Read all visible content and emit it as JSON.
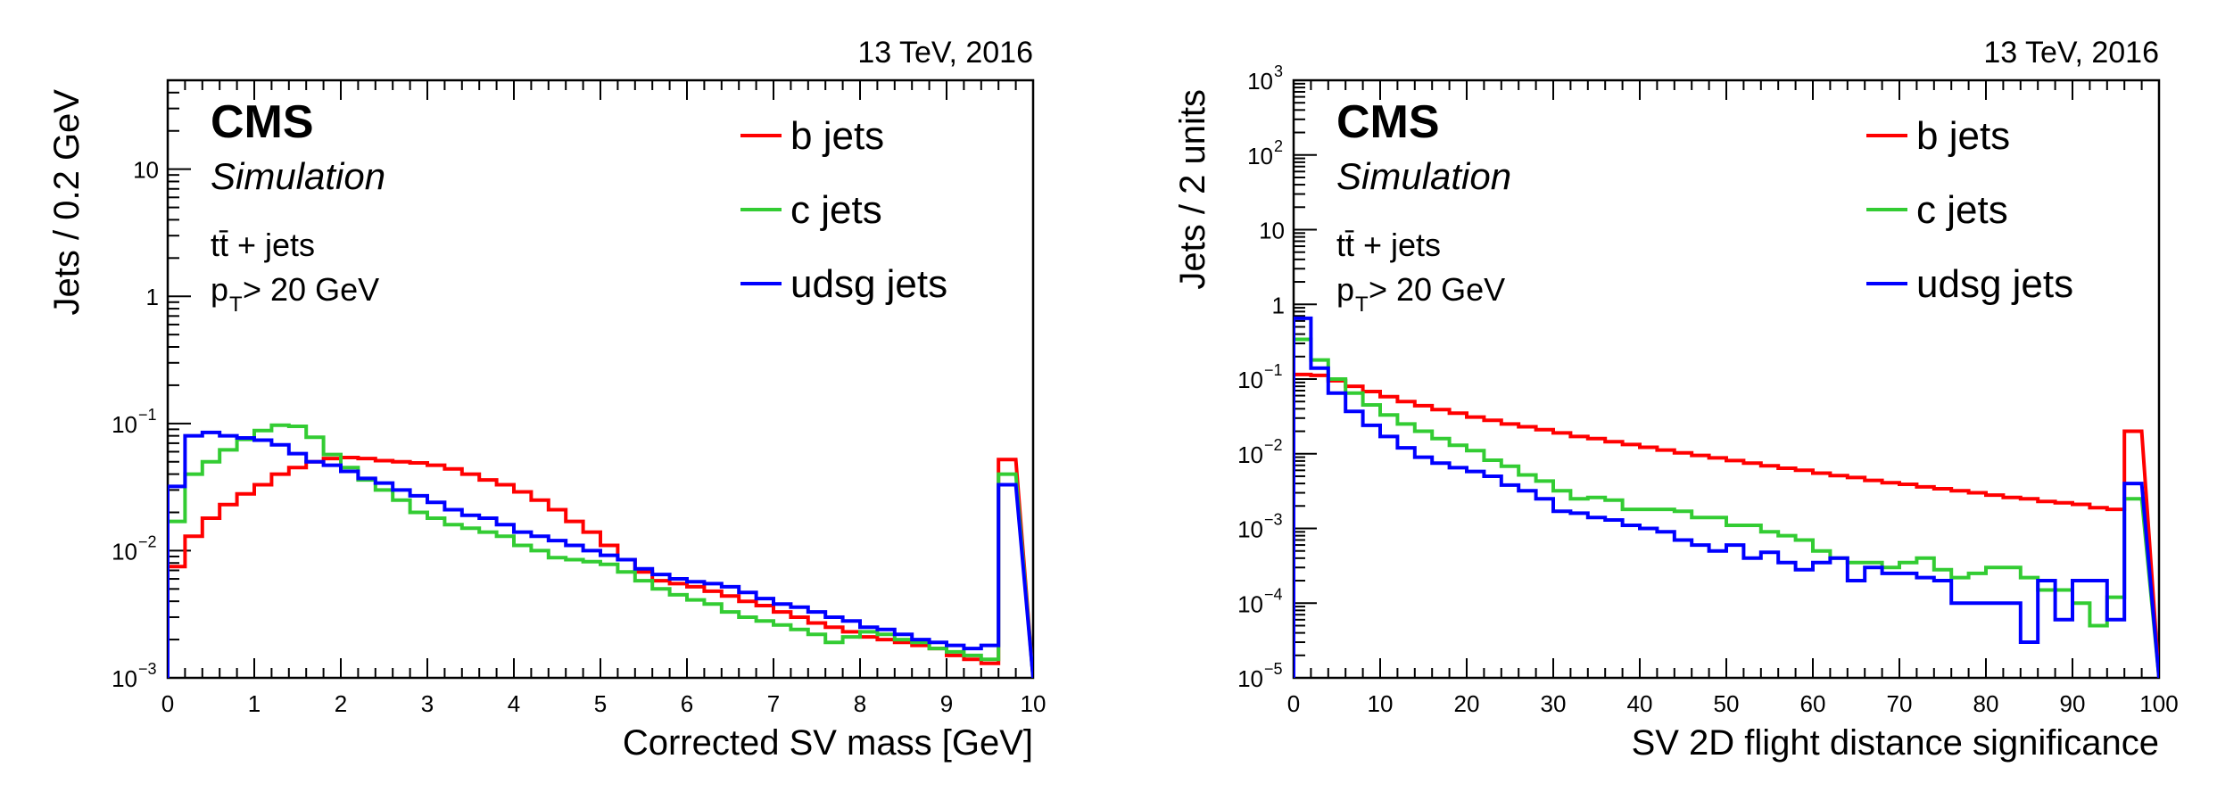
{
  "chart_data": [
    {
      "type": "line",
      "step": true,
      "experiment": "CMS",
      "subtitle": "Simulation",
      "energy_label": "13 TeV, 2016",
      "process": "tt̄ + jets",
      "cut": "p",
      "cut_sub": "T",
      "cut_rest": " > 20 GeV",
      "xlabel": "Corrected SV mass [GeV]",
      "ylabel": "Jets / 0.2 GeV",
      "xlim": [
        0,
        10
      ],
      "ylim": [
        0.001,
        50
      ],
      "yscale": "log",
      "legend_position": "top-right",
      "x_ticks": [
        "0",
        "1",
        "2",
        "3",
        "4",
        "5",
        "6",
        "7",
        "8",
        "9",
        "10"
      ],
      "y_ticks": [
        {
          "value": 0.001,
          "base": "10",
          "exp": "−3"
        },
        {
          "value": 0.01,
          "base": "10",
          "exp": "−2"
        },
        {
          "value": 0.1,
          "base": "10",
          "exp": "−1"
        },
        {
          "value": 1,
          "base": "1",
          "exp": ""
        },
        {
          "value": 10,
          "base": "10",
          "exp": ""
        }
      ],
      "bin_edges": [
        0.2,
        0.4,
        0.6,
        0.8,
        1.0,
        1.2,
        1.4,
        1.6,
        1.8,
        2.0,
        2.2,
        2.4,
        2.6,
        2.8,
        3.0,
        3.2,
        3.4,
        3.6,
        3.8,
        4.0,
        4.2,
        4.4,
        4.6,
        4.8,
        5.0,
        5.2,
        5.4,
        5.6,
        5.8,
        6.0,
        6.2,
        6.4,
        6.6,
        6.8,
        7.0,
        7.2,
        7.4,
        7.6,
        7.8,
        8.0,
        8.2,
        8.4,
        8.6,
        8.8,
        9.0,
        9.2,
        9.4,
        9.6,
        9.8,
        10.0
      ],
      "series": [
        {
          "name": "b jets",
          "color": "#ff0000",
          "values": [
            0.0075,
            0.013,
            0.018,
            0.023,
            0.028,
            0.033,
            0.04,
            0.045,
            0.05,
            0.053,
            0.054,
            0.053,
            0.051,
            0.05,
            0.049,
            0.047,
            0.044,
            0.04,
            0.036,
            0.033,
            0.029,
            0.025,
            0.021,
            0.017,
            0.014,
            0.011,
            0.0085,
            0.0068,
            0.0058,
            0.0055,
            0.0052,
            0.0048,
            0.0044,
            0.004,
            0.0037,
            0.0033,
            0.003,
            0.0027,
            0.0025,
            0.0023,
            0.0021,
            0.002,
            0.0019,
            0.0018,
            0.0017,
            0.0015,
            0.0014,
            0.0013,
            0.052
          ]
        },
        {
          "name": "c jets",
          "color": "#33cc33",
          "values": [
            0.017,
            0.04,
            0.05,
            0.062,
            0.075,
            0.088,
            0.097,
            0.095,
            0.078,
            0.057,
            0.045,
            0.036,
            0.03,
            0.025,
            0.02,
            0.018,
            0.016,
            0.015,
            0.014,
            0.013,
            0.011,
            0.01,
            0.0088,
            0.0085,
            0.0082,
            0.0078,
            0.0068,
            0.0058,
            0.005,
            0.0045,
            0.0041,
            0.0038,
            0.0033,
            0.003,
            0.0028,
            0.0026,
            0.0024,
            0.0022,
            0.0019,
            0.0021,
            0.0023,
            0.0022,
            0.002,
            0.0019,
            0.0017,
            0.0016,
            0.0015,
            0.0014,
            0.04
          ]
        },
        {
          "name": "udsg jets",
          "color": "#0000ff",
          "values": [
            0.032,
            0.08,
            0.085,
            0.08,
            0.077,
            0.074,
            0.068,
            0.058,
            0.05,
            0.047,
            0.042,
            0.037,
            0.034,
            0.03,
            0.027,
            0.024,
            0.021,
            0.019,
            0.018,
            0.016,
            0.014,
            0.013,
            0.012,
            0.011,
            0.01,
            0.0092,
            0.0085,
            0.0072,
            0.0065,
            0.006,
            0.0057,
            0.0055,
            0.0052,
            0.0047,
            0.0042,
            0.0038,
            0.0036,
            0.0033,
            0.003,
            0.0028,
            0.0025,
            0.0024,
            0.0022,
            0.002,
            0.0019,
            0.0018,
            0.0017,
            0.0018,
            0.033
          ]
        }
      ]
    },
    {
      "type": "line",
      "step": true,
      "experiment": "CMS",
      "subtitle": "Simulation",
      "energy_label": "13 TeV, 2016",
      "process": "tt̄ + jets",
      "cut": "p",
      "cut_sub": "T",
      "cut_rest": " > 20 GeV",
      "xlabel": "SV 2D flight distance significance",
      "ylabel": "Jets / 2 units",
      "xlim": [
        0,
        100
      ],
      "ylim": [
        1e-05,
        1000
      ],
      "yscale": "log",
      "legend_position": "top-right",
      "x_ticks": [
        "0",
        "10",
        "20",
        "30",
        "40",
        "50",
        "60",
        "70",
        "80",
        "90",
        "100"
      ],
      "y_ticks": [
        {
          "value": 1e-05,
          "base": "10",
          "exp": "−5"
        },
        {
          "value": 0.0001,
          "base": "10",
          "exp": "−4"
        },
        {
          "value": 0.001,
          "base": "10",
          "exp": "−3"
        },
        {
          "value": 0.01,
          "base": "10",
          "exp": "−2"
        },
        {
          "value": 0.1,
          "base": "10",
          "exp": "−1"
        },
        {
          "value": 1,
          "base": "1",
          "exp": ""
        },
        {
          "value": 10,
          "base": "10",
          "exp": ""
        },
        {
          "value": 100,
          "base": "10",
          "exp": "2"
        },
        {
          "value": 1000,
          "base": "10",
          "exp": "3"
        }
      ],
      "bin_edges": [
        2,
        4,
        6,
        8,
        10,
        12,
        14,
        16,
        18,
        20,
        22,
        24,
        26,
        28,
        30,
        32,
        34,
        36,
        38,
        40,
        42,
        44,
        46,
        48,
        50,
        52,
        54,
        56,
        58,
        60,
        62,
        64,
        66,
        68,
        70,
        72,
        74,
        76,
        78,
        80,
        82,
        84,
        86,
        88,
        90,
        92,
        94,
        96,
        98,
        100
      ],
      "series": [
        {
          "name": "b jets",
          "color": "#ff0000",
          "values": [
            0.115,
            0.112,
            0.095,
            0.08,
            0.068,
            0.058,
            0.05,
            0.044,
            0.039,
            0.035,
            0.031,
            0.028,
            0.025,
            0.023,
            0.021,
            0.019,
            0.017,
            0.016,
            0.0145,
            0.0133,
            0.0122,
            0.0112,
            0.0103,
            0.0095,
            0.0088,
            0.0081,
            0.0075,
            0.0069,
            0.0064,
            0.006,
            0.0055,
            0.0051,
            0.0048,
            0.0044,
            0.0041,
            0.0039,
            0.0036,
            0.0034,
            0.0032,
            0.003,
            0.0028,
            0.0026,
            0.0025,
            0.0023,
            0.0022,
            0.0021,
            0.0019,
            0.0018,
            0.02
          ]
        },
        {
          "name": "c jets",
          "color": "#33cc33",
          "values": [
            0.34,
            0.18,
            0.1,
            0.065,
            0.045,
            0.033,
            0.025,
            0.02,
            0.016,
            0.013,
            0.011,
            0.0082,
            0.0068,
            0.0052,
            0.0043,
            0.0032,
            0.0025,
            0.0026,
            0.0024,
            0.0018,
            0.0018,
            0.0018,
            0.0017,
            0.0014,
            0.0014,
            0.0011,
            0.0011,
            0.0009,
            0.0008,
            0.0007,
            0.0005,
            0.0004,
            0.00035,
            0.00035,
            0.0003,
            0.00035,
            0.0004,
            0.00028,
            0.00022,
            0.00025,
            0.0003,
            0.0003,
            0.00022,
            0.00015,
            0.00015,
            0.0001,
            5e-05,
            0.00012,
            0.0025
          ]
        },
        {
          "name": "udsg jets",
          "color": "#0000ff",
          "values": [
            0.65,
            0.14,
            0.065,
            0.037,
            0.024,
            0.017,
            0.012,
            0.009,
            0.0075,
            0.0065,
            0.0058,
            0.005,
            0.0038,
            0.0032,
            0.0025,
            0.0017,
            0.0016,
            0.0014,
            0.0013,
            0.0011,
            0.001,
            0.0009,
            0.0007,
            0.0006,
            0.0005,
            0.0006,
            0.0004,
            0.00048,
            0.00035,
            0.00028,
            0.00035,
            0.0004,
            0.0002,
            0.0003,
            0.00025,
            0.00025,
            0.00022,
            0.0002,
            0.0001,
            0.0001,
            0.0001,
            0.0001,
            3e-05,
            0.0002,
            6e-05,
            0.0002,
            0.0002,
            6e-05,
            0.004
          ]
        }
      ]
    }
  ]
}
